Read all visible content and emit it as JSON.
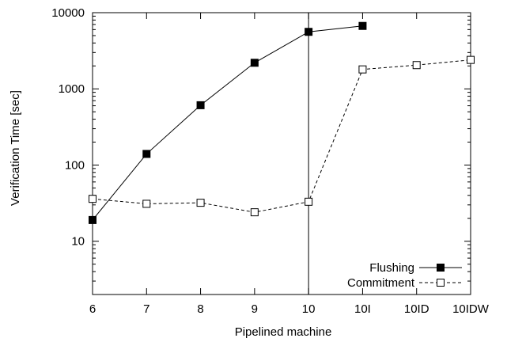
{
  "chart_data": {
    "type": "line",
    "title": "",
    "xlabel": "Pipelined machine",
    "ylabel": "Verification Time  [sec]",
    "yscale": "log",
    "ylim": [
      2,
      10000
    ],
    "categories": [
      "6",
      "7",
      "8",
      "9",
      "10",
      "10I",
      "10ID",
      "10IDW"
    ],
    "y_ticks": [
      10,
      100,
      1000,
      10000
    ],
    "y_tick_labels": [
      "10",
      "100",
      "1000",
      "10000"
    ],
    "grid": false,
    "legend_position": "bottom-right",
    "vertical_marker_at": "10",
    "series": [
      {
        "name": "Flushing",
        "marker": "filled-square",
        "line_style": "solid",
        "color": "#000000",
        "values": [
          19,
          140,
          610,
          2200,
          5600,
          6700,
          null,
          null
        ]
      },
      {
        "name": "Commitment",
        "marker": "open-square",
        "line_style": "dashed",
        "color": "#000000",
        "values": [
          36,
          31,
          32,
          24,
          33,
          1800,
          2050,
          2400
        ]
      }
    ]
  }
}
